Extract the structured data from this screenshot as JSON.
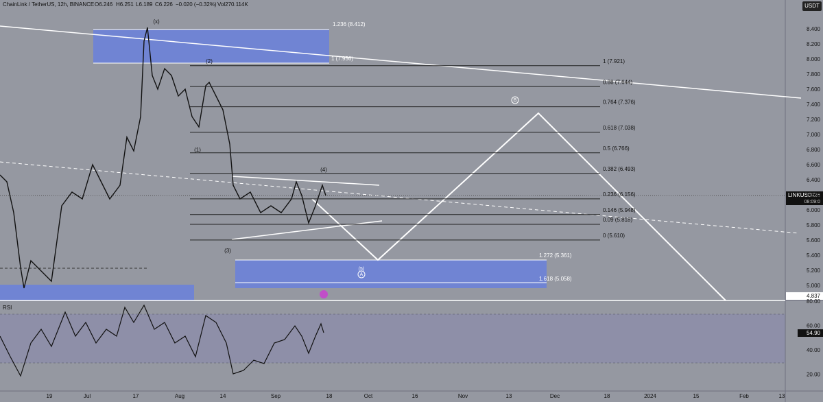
{
  "header": {
    "symbol": "ChainLink / TetherUS, 12h, BINANCE",
    "open": "O6.246",
    "high": "H6.251",
    "low": "L6.189",
    "close": "C6.226",
    "change": "−0.020 (−0.32%)",
    "volume": "Vol270.114K"
  },
  "price_axis": {
    "unit": "USDT",
    "labels": [
      "8.400",
      "8.200",
      "8.000",
      "7.800",
      "7.600",
      "7.400",
      "7.200",
      "7.000",
      "6.800",
      "6.600",
      "6.400",
      "6.200",
      "6.000",
      "5.800",
      "5.600",
      "5.400",
      "5.200",
      "5.000"
    ],
    "last_symbol": "LINKUSDT",
    "last_price": "6.226",
    "countdown": "08:09:0",
    "low_level": "4.837"
  },
  "fib_levels": [
    "1 (7.921)",
    "0.88 (7.644)",
    "0.764 (7.376)",
    "0.618 (7.038)",
    "0.5 (6.766)",
    "0.382 (6.493)",
    "0.236 (6.156)",
    "0.146 (5.948)",
    "0.09 (5.818)",
    "0 (5.610)"
  ],
  "extensions": [
    "1.236 (8.412)",
    "1 (7.956)",
    "1.272 (5.361)",
    "1.618 (5.058)"
  ],
  "waves": [
    "(x)",
    "(2)",
    "(1)",
    "(4)",
    "(3)",
    "(5)",
    "A",
    "B"
  ],
  "rsi": {
    "title": "RSI",
    "labels": [
      "80.00",
      "60.00",
      "40.00",
      "20.00"
    ],
    "current": "54.90"
  },
  "time_axis": [
    "19",
    "Jul",
    "17",
    "Aug",
    "14",
    "Sep",
    "18",
    "Oct",
    "16",
    "Nov",
    "13",
    "Dec",
    "18",
    "2024",
    "15",
    "Feb",
    "13"
  ]
}
